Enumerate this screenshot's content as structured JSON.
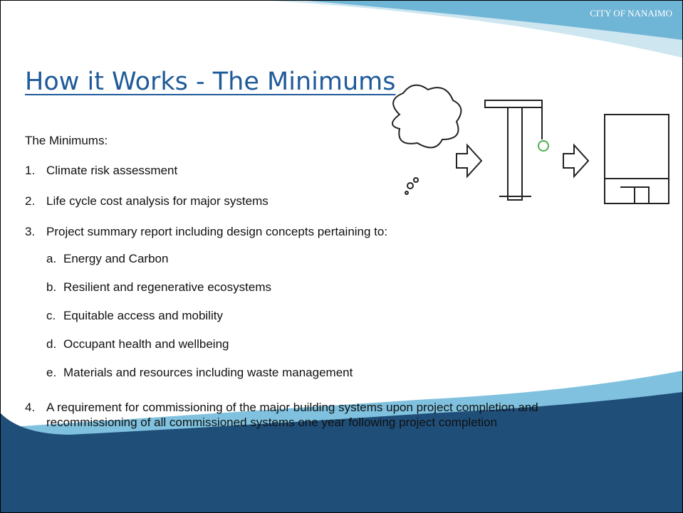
{
  "header": {
    "logo": "CITY OF NANAIMO",
    "title": "How it Works - The Minimums"
  },
  "intro": "The Minimums:",
  "items": [
    {
      "number": "1.",
      "text": "Climate risk assessment"
    },
    {
      "number": "2.",
      "text": "Life cycle cost analysis for major systems"
    },
    {
      "number": "3.",
      "text": "Project summary report including design concepts pertaining to:",
      "subitems": [
        {
          "letter": "a.",
          "text": "Energy and Carbon"
        },
        {
          "letter": "b.",
          "text": "Resilient and regenerative ecosystems"
        },
        {
          "letter": "c.",
          "text": "Equitable access and mobility"
        },
        {
          "letter": "d.",
          "text": "Occupant health and wellbeing"
        },
        {
          "letter": "e.",
          "text": "Materials and resources including waste management"
        }
      ]
    },
    {
      "number": "4.",
      "text": "A requirement for commissioning of the major building systems upon project completion and recommissioning of all commissioned systems one year following project completion"
    }
  ]
}
